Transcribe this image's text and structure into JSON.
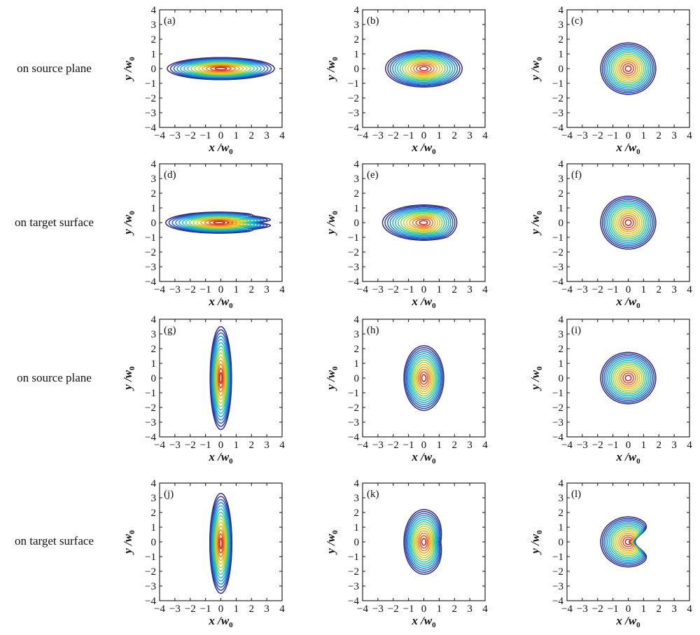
{
  "row_labels": [
    "on source plane",
    "on target surface",
    "on source plane",
    "on target surface"
  ],
  "chart_data": [
    {
      "type": "contour",
      "label": "(a)",
      "xlabel": "x /w",
      "ylabel": "y /w",
      "subscript": "0",
      "xlim": [
        -4,
        4
      ],
      "ylim": [
        -4,
        4
      ],
      "xticks": [
        -4,
        -3,
        -2,
        -1,
        0,
        1,
        2,
        3,
        4
      ],
      "yticks": [
        -4,
        -3,
        -2,
        -1,
        0,
        1,
        2,
        3,
        4
      ],
      "center": [
        0,
        0
      ],
      "semi_axes": [
        3.5,
        0.75
      ],
      "levels": 14,
      "distortion": "none"
    },
    {
      "type": "contour",
      "label": "(b)",
      "xlabel": "x /w",
      "ylabel": "y /w",
      "subscript": "0",
      "xlim": [
        -4,
        4
      ],
      "ylim": [
        -4,
        4
      ],
      "xticks": [
        -4,
        -3,
        -2,
        -1,
        0,
        1,
        2,
        3,
        4
      ],
      "yticks": [
        -4,
        -3,
        -2,
        -1,
        0,
        1,
        2,
        3,
        4
      ],
      "center": [
        0,
        0
      ],
      "semi_axes": [
        2.5,
        1.25
      ],
      "levels": 14,
      "distortion": "none"
    },
    {
      "type": "contour",
      "label": "(c)",
      "xlabel": "x /w",
      "ylabel": "y /w",
      "subscript": "0",
      "xlim": [
        -4,
        4
      ],
      "ylim": [
        -4,
        4
      ],
      "xticks": [
        -4,
        -3,
        -2,
        -1,
        0,
        1,
        2,
        3,
        4
      ],
      "yticks": [
        -4,
        -3,
        -2,
        -1,
        0,
        1,
        2,
        3,
        4
      ],
      "center": [
        0,
        0
      ],
      "semi_axes": [
        1.8,
        1.75
      ],
      "levels": 14,
      "distortion": "none"
    },
    {
      "type": "contour",
      "label": "(d)",
      "xlabel": "x /w",
      "ylabel": "y /w",
      "subscript": "0",
      "xlim": [
        -4,
        4
      ],
      "ylim": [
        -4,
        4
      ],
      "xticks": [
        -4,
        -3,
        -2,
        -1,
        0,
        1,
        2,
        3,
        4
      ],
      "yticks": [
        -4,
        -3,
        -2,
        -1,
        0,
        1,
        2,
        3,
        4
      ],
      "center": [
        -0.1,
        0
      ],
      "semi_axes": [
        3.5,
        0.72
      ],
      "levels": 14,
      "distortion": "wavy-right"
    },
    {
      "type": "contour",
      "label": "(e)",
      "xlabel": "x /w",
      "ylabel": "y /w",
      "subscript": "0",
      "xlim": [
        -4,
        4
      ],
      "ylim": [
        -4,
        4
      ],
      "xticks": [
        -4,
        -3,
        -2,
        -1,
        0,
        1,
        2,
        3,
        4
      ],
      "yticks": [
        -4,
        -3,
        -2,
        -1,
        0,
        1,
        2,
        3,
        4
      ],
      "center": [
        0,
        0
      ],
      "semi_axes": [
        2.7,
        1.2
      ],
      "levels": 14,
      "distortion": "flat-right"
    },
    {
      "type": "contour",
      "label": "(f)",
      "xlabel": "x /w",
      "ylabel": "y /w",
      "subscript": "0",
      "xlim": [
        -4,
        4
      ],
      "ylim": [
        -4,
        4
      ],
      "xticks": [
        -4,
        -3,
        -2,
        -1,
        0,
        1,
        2,
        3,
        4
      ],
      "yticks": [
        -4,
        -3,
        -2,
        -1,
        0,
        1,
        2,
        3,
        4
      ],
      "center": [
        0,
        0
      ],
      "semi_axes": [
        1.8,
        1.8
      ],
      "levels": 14,
      "distortion": "none"
    },
    {
      "type": "contour",
      "label": "(g)",
      "xlabel": "x /w",
      "ylabel": "y /w",
      "subscript": "0",
      "xlim": [
        -4,
        4
      ],
      "ylim": [
        -4,
        4
      ],
      "xticks": [
        -4,
        -3,
        -2,
        -1,
        0,
        1,
        2,
        3,
        4
      ],
      "yticks": [
        -4,
        -3,
        -2,
        -1,
        0,
        1,
        2,
        3,
        4
      ],
      "center": [
        0,
        0
      ],
      "semi_axes": [
        0.7,
        3.5
      ],
      "levels": 14,
      "distortion": "none"
    },
    {
      "type": "contour",
      "label": "(h)",
      "xlabel": "x /w",
      "ylabel": "y /w",
      "subscript": "0",
      "xlim": [
        -4,
        4
      ],
      "ylim": [
        -4,
        4
      ],
      "xticks": [
        -4,
        -3,
        -2,
        -1,
        0,
        1,
        2,
        3,
        4
      ],
      "yticks": [
        -4,
        -3,
        -2,
        -1,
        0,
        1,
        2,
        3,
        4
      ],
      "center": [
        0,
        0
      ],
      "semi_axes": [
        1.3,
        2.2
      ],
      "levels": 14,
      "distortion": "none"
    },
    {
      "type": "contour",
      "label": "(i)",
      "xlabel": "x /w",
      "ylabel": "y /w",
      "subscript": "0",
      "xlim": [
        -4,
        4
      ],
      "ylim": [
        -4,
        4
      ],
      "xticks": [
        -4,
        -3,
        -2,
        -1,
        0,
        1,
        2,
        3,
        4
      ],
      "yticks": [
        -4,
        -3,
        -2,
        -1,
        0,
        1,
        2,
        3,
        4
      ],
      "center": [
        0,
        0
      ],
      "semi_axes": [
        1.8,
        1.75
      ],
      "levels": 14,
      "distortion": "none"
    },
    {
      "type": "contour",
      "label": "(j)",
      "xlabel": "x /w",
      "ylabel": "y /w",
      "subscript": "0",
      "xlim": [
        -4,
        4
      ],
      "ylim": [
        -4,
        4
      ],
      "xticks": [
        -4,
        -3,
        -2,
        -1,
        0,
        1,
        2,
        3,
        4
      ],
      "yticks": [
        -4,
        -3,
        -2,
        -1,
        0,
        1,
        2,
        3,
        4
      ],
      "center": [
        0,
        -0.1
      ],
      "semi_axes": [
        0.72,
        3.4
      ],
      "levels": 14,
      "distortion": "none"
    },
    {
      "type": "contour",
      "label": "(k)",
      "xlabel": "x /w",
      "ylabel": "y /w",
      "subscript": "0",
      "xlim": [
        -4,
        4
      ],
      "ylim": [
        -4,
        4
      ],
      "xticks": [
        -4,
        -3,
        -2,
        -1,
        0,
        1,
        2,
        3,
        4
      ],
      "yticks": [
        -4,
        -3,
        -2,
        -1,
        0,
        1,
        2,
        3,
        4
      ],
      "center": [
        0,
        0
      ],
      "semi_axes": [
        1.3,
        2.2
      ],
      "levels": 14,
      "distortion": "bulge-right"
    },
    {
      "type": "contour",
      "label": "(l)",
      "xlabel": "x /w",
      "ylabel": "y /w",
      "subscript": "0",
      "xlim": [
        -4,
        4
      ],
      "ylim": [
        -4,
        4
      ],
      "xticks": [
        -4,
        -3,
        -2,
        -1,
        0,
        1,
        2,
        3,
        4
      ],
      "yticks": [
        -4,
        -3,
        -2,
        -1,
        0,
        1,
        2,
        3,
        4
      ],
      "center": [
        0,
        0
      ],
      "semi_axes": [
        1.8,
        1.7
      ],
      "levels": 14,
      "distortion": "crescent-right"
    }
  ],
  "colors": {
    "level_palette": [
      "#2b2a8c",
      "#2b3aa6",
      "#1f5fc4",
      "#1e86d6",
      "#1ca6d8",
      "#18bfc0",
      "#3fc98a",
      "#7fd155",
      "#b9d22f",
      "#e5c51d",
      "#f5a517",
      "#f5781a",
      "#e9461c",
      "#c81e1e"
    ],
    "axis": "#111111"
  }
}
